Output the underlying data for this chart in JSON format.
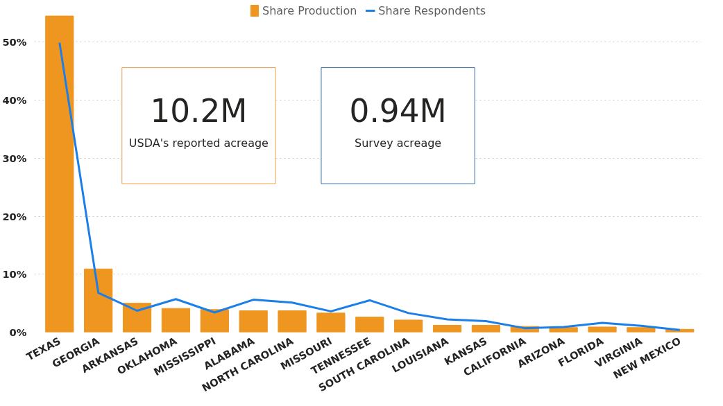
{
  "chart_data": {
    "type": "bar",
    "categories": [
      "TEXAS",
      "GEORGIA",
      "ARKANSAS",
      "OKLAHOMA",
      "MISSISSIPPI",
      "ALABAMA",
      "NORTH CAROLINA",
      "MISSOURI",
      "TENNESSEE",
      "SOUTH CAROLINA",
      "LOUISIANA",
      "KANSAS",
      "CALIFORNIA",
      "ARIZONA",
      "FLORIDA",
      "VIRGINIA",
      "NEW MEXICO"
    ],
    "series": [
      {
        "name": "Share Production",
        "color": "#ee9620",
        "values": [
          54.5,
          10.9,
          5.0,
          4.1,
          3.9,
          3.7,
          3.7,
          3.3,
          2.6,
          2.1,
          1.2,
          1.2,
          1.0,
          0.8,
          0.9,
          0.8,
          0.5
        ]
      },
      {
        "name": "Share Respondents",
        "type": "line",
        "color": "#1a7fe8",
        "values": [
          49.9,
          6.8,
          3.7,
          5.7,
          3.4,
          5.6,
          5.1,
          3.6,
          5.5,
          3.3,
          2.2,
          1.9,
          0.7,
          0.9,
          1.6,
          1.1,
          0.4
        ]
      }
    ],
    "ylim": [
      0,
      56.6
    ],
    "yticks": [
      {
        "value": 0,
        "label": "0%"
      },
      {
        "value": 10,
        "label": "10%"
      },
      {
        "value": 20,
        "label": "20%"
      },
      {
        "value": 30,
        "label": "30%"
      },
      {
        "value": 40,
        "label": "40%"
      },
      {
        "value": 50,
        "label": "50%"
      }
    ],
    "grid": "y",
    "legend": "top",
    "annotations": [
      "10.2M",
      "USDA's reported acreage",
      "0.94M",
      "Survey acreage"
    ]
  }
}
